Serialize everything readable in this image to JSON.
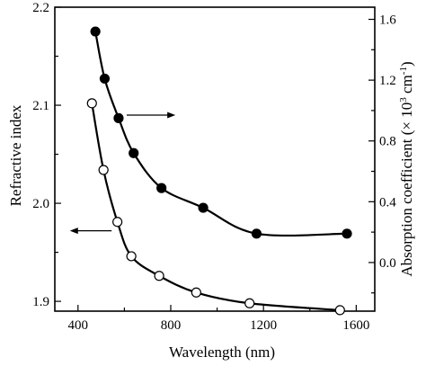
{
  "chart_data": {
    "type": "scatter",
    "title": "",
    "xlabel": "Wavelength (nm)",
    "ylabel_left": "Refractive index",
    "ylabel_right_main": "Absorption coefficient (× 10",
    "ylabel_right_exp1": "3",
    "ylabel_right_mid": " cm",
    "ylabel_right_exp2": "-1",
    "ylabel_right_end": ")",
    "xlim": [
      300,
      1680
    ],
    "ylim_left": [
      1.89,
      2.2
    ],
    "ylim_right": [
      -0.32,
      1.68
    ],
    "x_ticks": [
      400,
      800,
      1200,
      1600
    ],
    "x_tick_labels": [
      "400",
      "800",
      "1200",
      "1600"
    ],
    "y_left_ticks": [
      1.9,
      2.0,
      2.1,
      2.2
    ],
    "y_left_tick_labels": [
      "1.9",
      "2.0",
      "2.1",
      "2.2"
    ],
    "y_right_ticks": [
      0.0,
      0.4,
      0.8,
      1.2,
      1.6
    ],
    "y_right_tick_labels": [
      "0.0",
      "0.4",
      "0.8",
      "1.2",
      "1.6"
    ],
    "series": [
      {
        "axis": "left",
        "marker": "open-circle",
        "x": [
          460,
          510,
          570,
          630,
          750,
          910,
          1140,
          1530
        ],
        "y": [
          2.102,
          2.034,
          1.981,
          1.946,
          1.926,
          1.909,
          1.898,
          1.891
        ]
      },
      {
        "axis": "right",
        "marker": "filled-circle",
        "x": [
          475,
          515,
          575,
          640,
          760,
          940,
          1170,
          1560
        ],
        "y": [
          1.52,
          1.21,
          0.95,
          0.72,
          0.49,
          0.36,
          0.19,
          0.19
        ]
      }
    ],
    "annotations": [
      {
        "type": "arrow",
        "direction": "right",
        "points_to": "right-axis"
      },
      {
        "type": "arrow",
        "direction": "left",
        "points_to": "left-axis"
      }
    ],
    "grid": false
  }
}
